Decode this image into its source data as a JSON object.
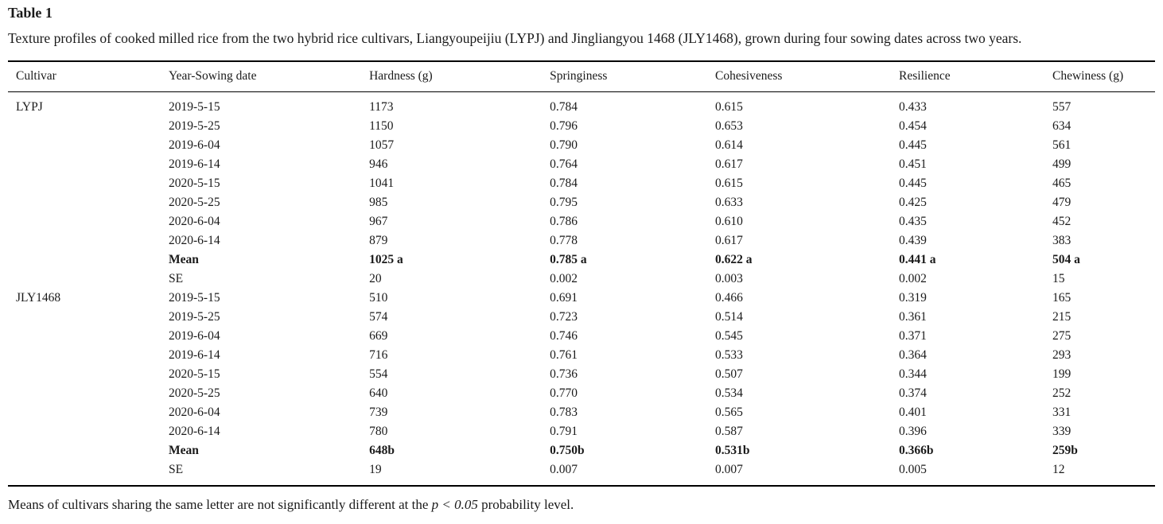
{
  "table": {
    "label": "Table 1",
    "caption": "Texture profiles of cooked milled rice from the two hybrid rice cultivars, Liangyoupeijiu (LYPJ) and Jingliangyou 1468 (JLY1468), grown during four sowing dates across two years.",
    "columns": [
      "Cultivar",
      "Year-Sowing date",
      "Hardness (g)",
      "Springiness",
      "Cohesiveness",
      "Resilience",
      "Chewiness (g)"
    ],
    "groups": [
      {
        "cultivar": "LYPJ",
        "rows": [
          {
            "label": "2019-5-15",
            "bold": false,
            "values": [
              "1173",
              "0.784",
              "0.615",
              "0.433",
              "557"
            ]
          },
          {
            "label": "2019-5-25",
            "bold": false,
            "values": [
              "1150",
              "0.796",
              "0.653",
              "0.454",
              "634"
            ]
          },
          {
            "label": "2019-6-04",
            "bold": false,
            "values": [
              "1057",
              "0.790",
              "0.614",
              "0.445",
              "561"
            ]
          },
          {
            "label": "2019-6-14",
            "bold": false,
            "values": [
              "946",
              "0.764",
              "0.617",
              "0.451",
              "499"
            ]
          },
          {
            "label": "2020-5-15",
            "bold": false,
            "values": [
              "1041",
              "0.784",
              "0.615",
              "0.445",
              "465"
            ]
          },
          {
            "label": "2020-5-25",
            "bold": false,
            "values": [
              "985",
              "0.795",
              "0.633",
              "0.425",
              "479"
            ]
          },
          {
            "label": "2020-6-04",
            "bold": false,
            "values": [
              "967",
              "0.786",
              "0.610",
              "0.435",
              "452"
            ]
          },
          {
            "label": "2020-6-14",
            "bold": false,
            "values": [
              "879",
              "0.778",
              "0.617",
              "0.439",
              "383"
            ]
          },
          {
            "label": "Mean",
            "bold": true,
            "values": [
              "1025 a",
              "0.785 a",
              "0.622 a",
              "0.441 a",
              "504 a"
            ]
          },
          {
            "label": "SE",
            "bold": false,
            "values": [
              "20",
              "0.002",
              "0.003",
              "0.002",
              "15"
            ]
          }
        ]
      },
      {
        "cultivar": "JLY1468",
        "rows": [
          {
            "label": "2019-5-15",
            "bold": false,
            "values": [
              "510",
              "0.691",
              "0.466",
              "0.319",
              "165"
            ]
          },
          {
            "label": "2019-5-25",
            "bold": false,
            "values": [
              "574",
              "0.723",
              "0.514",
              "0.361",
              "215"
            ]
          },
          {
            "label": "2019-6-04",
            "bold": false,
            "values": [
              "669",
              "0.746",
              "0.545",
              "0.371",
              "275"
            ]
          },
          {
            "label": "2019-6-14",
            "bold": false,
            "values": [
              "716",
              "0.761",
              "0.533",
              "0.364",
              "293"
            ]
          },
          {
            "label": "2020-5-15",
            "bold": false,
            "values": [
              "554",
              "0.736",
              "0.507",
              "0.344",
              "199"
            ]
          },
          {
            "label": "2020-5-25",
            "bold": false,
            "values": [
              "640",
              "0.770",
              "0.534",
              "0.374",
              "252"
            ]
          },
          {
            "label": "2020-6-04",
            "bold": false,
            "values": [
              "739",
              "0.783",
              "0.565",
              "0.401",
              "331"
            ]
          },
          {
            "label": "2020-6-14",
            "bold": false,
            "values": [
              "780",
              "0.791",
              "0.587",
              "0.396",
              "339"
            ]
          },
          {
            "label": "Mean",
            "bold": true,
            "values": [
              "648b",
              "0.750b",
              "0.531b",
              "0.366b",
              "259b"
            ]
          },
          {
            "label": "SE",
            "bold": false,
            "values": [
              "19",
              "0.007",
              "0.007",
              "0.005",
              "12"
            ]
          }
        ]
      }
    ],
    "footnote": {
      "pre": "Means of cultivars sharing the same letter are not significantly different at the ",
      "italic": "p < 0.05",
      "post": " probability level."
    }
  }
}
